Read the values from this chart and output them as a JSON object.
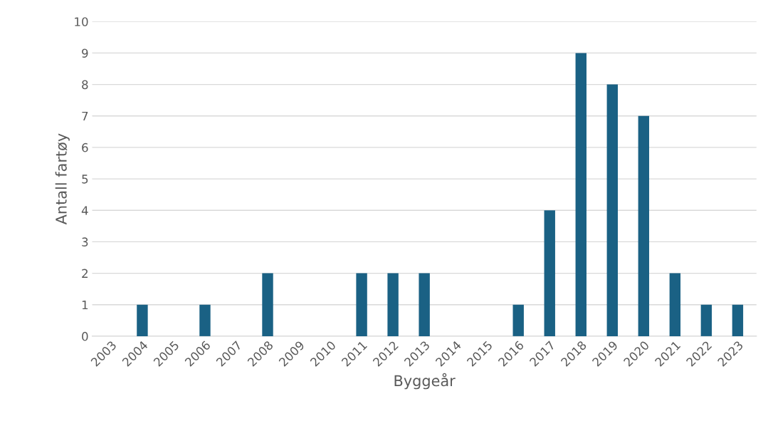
{
  "chart_data": {
    "type": "bar",
    "xlabel": "Byggeår",
    "ylabel": "Antall fartøy",
    "categories": [
      "2003",
      "2004",
      "2005",
      "2006",
      "2007",
      "2008",
      "2009",
      "2010",
      "2011",
      "2012",
      "2013",
      "2014",
      "2015",
      "2016",
      "2017",
      "2018",
      "2019",
      "2020",
      "2021",
      "2022",
      "2023"
    ],
    "values": [
      0,
      1,
      0,
      1,
      0,
      2,
      0,
      0,
      2,
      2,
      2,
      0,
      0,
      1,
      4,
      9,
      8,
      7,
      2,
      1,
      1
    ],
    "color": "#1a6184",
    "ylim": [
      0,
      10
    ],
    "yticks": [
      0,
      1,
      2,
      3,
      4,
      5,
      6,
      7,
      8,
      9,
      10
    ],
    "grid": "y"
  }
}
